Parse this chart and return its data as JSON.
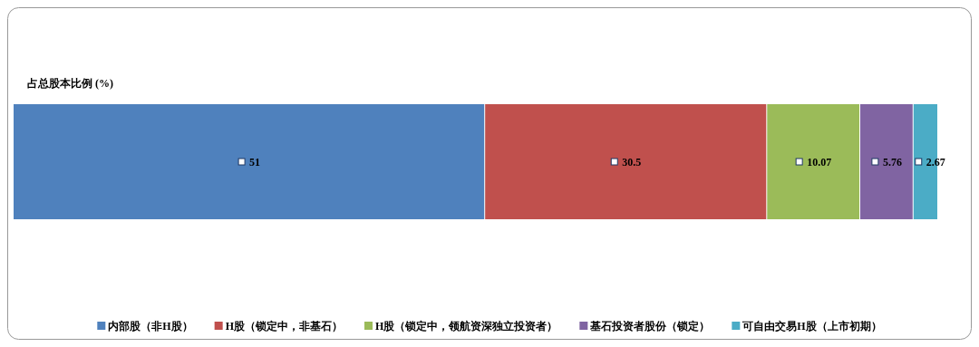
{
  "chart_data": {
    "type": "bar",
    "orientation": "horizontal",
    "stacked": true,
    "title": "占总股本比例 (%)",
    "categories": [
      null
    ],
    "xlim": [
      0,
      100
    ],
    "tick_labels": false,
    "data_labels": true,
    "legend": "bottom",
    "series": [
      {
        "name": "内部股（非H股）",
        "color": "#4f81bd",
        "values": [
          51
        ]
      },
      {
        "name": "H股（锁定中，非基石）",
        "color": "#c0504d",
        "values": [
          30.5
        ]
      },
      {
        "name": "H股（锁定中，领航资深独立投资者）",
        "color": "#9bbb59",
        "values": [
          10.07
        ]
      },
      {
        "name": "基石投资者股份（锁定）",
        "color": "#8064a2",
        "values": [
          5.76
        ]
      },
      {
        "name": "可自由交易H股（上市初期）",
        "color": "#4bacc6",
        "values": [
          2.67
        ]
      }
    ]
  }
}
